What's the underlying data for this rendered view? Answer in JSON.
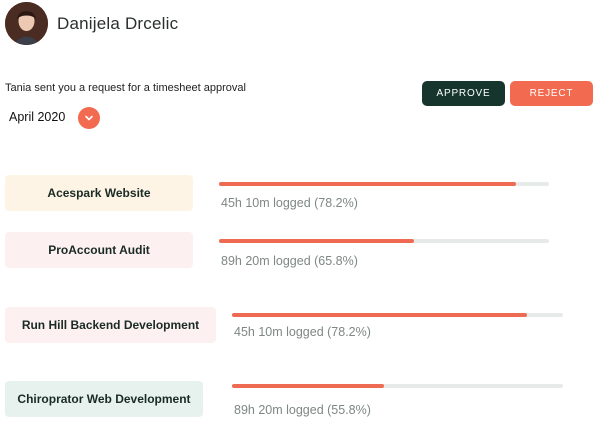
{
  "user": {
    "name": "Danijela Drcelic"
  },
  "request": {
    "message": "Tania sent you a request for a timesheet approval",
    "month": "April 2020"
  },
  "actions": {
    "approve_label": "APPROVE",
    "reject_label": "REJECT"
  },
  "colors": {
    "accent": "#f26a4f",
    "dark": "#16352d",
    "bar_fill": "#ee6a52",
    "bar_track": "#e6ebe9"
  },
  "projects": [
    {
      "name": "Acespark Website",
      "logged": "45h 10m logged (78.2%)",
      "progress": 0.9,
      "chip_color": "#fdf4e6"
    },
    {
      "name": "ProAccount Audit",
      "logged": "89h 20m logged (65.8%)",
      "progress": 0.59,
      "chip_color": "#fdf0f0"
    },
    {
      "name": "Run Hill Backend Development",
      "logged": "45h 10m logged (78.2%)",
      "progress": 0.89,
      "chip_color": "#fdf0f0"
    },
    {
      "name": "Chiroprator Web Development",
      "logged": "89h 20m logged (55.8%)",
      "progress": 0.46,
      "chip_color": "#e7f2ee"
    }
  ]
}
